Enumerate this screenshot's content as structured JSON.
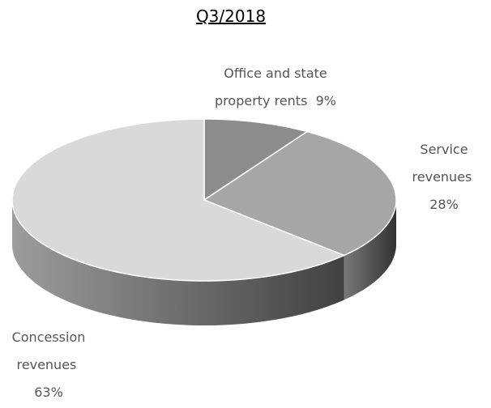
{
  "chart_data": {
    "type": "pie",
    "title": "Q3/2018",
    "categories": [
      "Office and state property rents",
      "Service revenues",
      "Concession revenues"
    ],
    "values": [
      9,
      28,
      63
    ],
    "value_labels": [
      "9%",
      "28%",
      "63%"
    ],
    "colors": [
      "#8c8c8c",
      "#a6a6a6",
      "#d9d9d9"
    ]
  }
}
